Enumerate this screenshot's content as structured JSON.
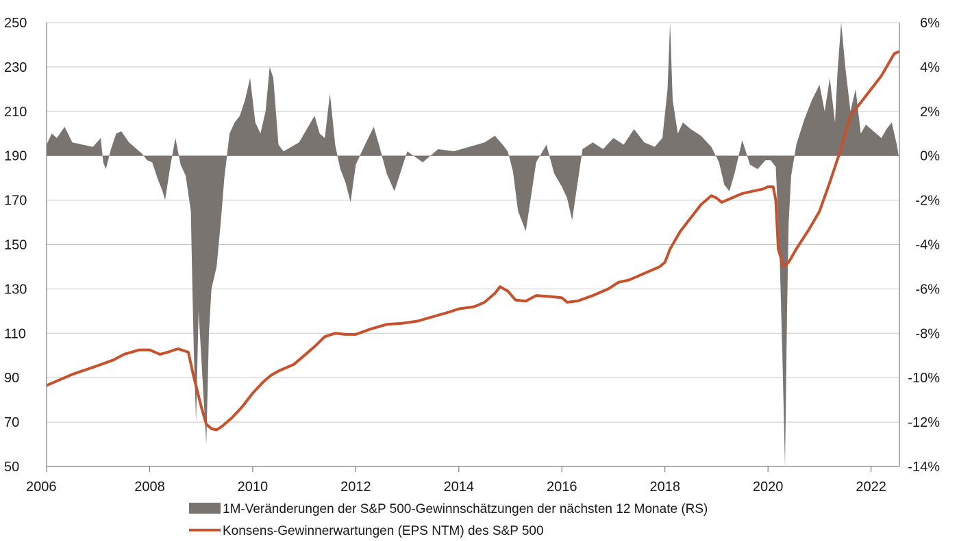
{
  "chart_data": {
    "type": "line",
    "title": "",
    "xlabel": "",
    "ylabel_left": "",
    "ylabel_right": "",
    "x_range": [
      2006,
      2022.55
    ],
    "x_ticks": [
      2006,
      2008,
      2010,
      2012,
      2014,
      2016,
      2018,
      2020,
      2022
    ],
    "x_tick_labels": [
      "2006",
      "2008",
      "2010",
      "2012",
      "2014",
      "2016",
      "2018",
      "2020",
      "2022"
    ],
    "y_left_range": [
      50,
      250
    ],
    "y_left_ticks": [
      50,
      70,
      90,
      110,
      130,
      150,
      170,
      190,
      210,
      230,
      250
    ],
    "y_left_tick_labels": [
      "50",
      "70",
      "90",
      "110",
      "130",
      "150",
      "170",
      "190",
      "210",
      "230",
      "250"
    ],
    "y_right_range": [
      -14,
      6
    ],
    "y_right_ticks": [
      -14,
      -12,
      -10,
      -8,
      -6,
      -4,
      -2,
      0,
      2,
      4,
      6
    ],
    "y_right_tick_labels": [
      "-14%",
      "-12%",
      "-10%",
      "-8%",
      "-6%",
      "-4%",
      "-2%",
      "0%",
      "2%",
      "4%",
      "6%"
    ],
    "grid": true,
    "legend_position": "bottom",
    "series": [
      {
        "name": "1M-Veränderungen der S&P 500-Gewinnschätzungen der nächsten 12 Monate (RS)",
        "kind": "area",
        "axis": "right",
        "color": "#7a7471",
        "x": [
          2006.0,
          2006.1,
          2006.2,
          2006.35,
          2006.5,
          2006.7,
          2006.9,
          2007.05,
          2007.1,
          2007.15,
          2007.25,
          2007.35,
          2007.45,
          2007.6,
          2007.75,
          2007.85,
          2007.95,
          2008.05,
          2008.15,
          2008.25,
          2008.3,
          2008.4,
          2008.5,
          2008.6,
          2008.7,
          2008.8,
          2008.83,
          2008.86,
          2008.9,
          2008.95,
          2009.0,
          2009.05,
          2009.1,
          2009.15,
          2009.2,
          2009.3,
          2009.38,
          2009.45,
          2009.55,
          2009.65,
          2009.75,
          2009.85,
          2009.95,
          2010.05,
          2010.15,
          2010.25,
          2010.33,
          2010.4,
          2010.5,
          2010.6,
          2010.75,
          2010.9,
          2011.05,
          2011.2,
          2011.3,
          2011.4,
          2011.5,
          2011.6,
          2011.7,
          2011.8,
          2011.9,
          2012.0,
          2012.2,
          2012.35,
          2012.45,
          2012.6,
          2012.75,
          2013.0,
          2013.3,
          2013.6,
          2013.9,
          2014.2,
          2014.5,
          2014.7,
          2014.85,
          2014.95,
          2015.05,
          2015.15,
          2015.3,
          2015.5,
          2015.7,
          2015.85,
          2016.0,
          2016.1,
          2016.2,
          2016.4,
          2016.6,
          2016.8,
          2017.0,
          2017.2,
          2017.4,
          2017.6,
          2017.8,
          2017.95,
          2018.05,
          2018.1,
          2018.15,
          2018.25,
          2018.35,
          2018.5,
          2018.7,
          2018.9,
          2019.05,
          2019.15,
          2019.25,
          2019.35,
          2019.5,
          2019.65,
          2019.8,
          2019.95,
          2020.05,
          2020.15,
          2020.22,
          2020.28,
          2020.33,
          2020.37,
          2020.4,
          2020.45,
          2020.55,
          2020.7,
          2020.85,
          2021.0,
          2021.1,
          2021.2,
          2021.3,
          2021.35,
          2021.42,
          2021.5,
          2021.6,
          2021.7,
          2021.8,
          2021.9,
          2022.0,
          2022.1,
          2022.2,
          2022.3,
          2022.4,
          2022.5,
          2022.55
        ],
        "values": [
          0.5,
          1.0,
          0.8,
          1.3,
          0.6,
          0.5,
          0.4,
          0.8,
          -0.3,
          -0.6,
          0.3,
          1.0,
          1.1,
          0.6,
          0.3,
          0.1,
          -0.2,
          -0.3,
          -1.0,
          -1.6,
          -2.0,
          -0.5,
          0.8,
          -0.4,
          -0.9,
          -2.5,
          -6.0,
          -9.0,
          -12.0,
          -7.0,
          -9.0,
          -11.0,
          -13.0,
          -8.0,
          -6.0,
          -5.0,
          -3.0,
          -1.0,
          1.0,
          1.5,
          1.8,
          2.5,
          3.5,
          1.5,
          1.0,
          2.0,
          4.0,
          3.5,
          0.5,
          0.2,
          0.4,
          0.6,
          1.2,
          1.8,
          1.0,
          0.8,
          2.8,
          0.5,
          -0.6,
          -1.2,
          -2.1,
          -0.4,
          0.6,
          1.3,
          0.5,
          -0.8,
          -1.6,
          0.2,
          -0.3,
          0.3,
          0.2,
          0.4,
          0.6,
          0.9,
          0.5,
          0.2,
          -0.7,
          -2.5,
          -3.4,
          -0.3,
          0.5,
          -0.8,
          -1.4,
          -1.9,
          -2.9,
          0.3,
          0.6,
          0.3,
          0.8,
          0.5,
          1.2,
          0.6,
          0.4,
          0.8,
          3.0,
          6.0,
          2.5,
          1.0,
          1.5,
          1.2,
          0.9,
          0.4,
          -0.3,
          -1.3,
          -1.6,
          -0.8,
          0.7,
          -0.4,
          -0.6,
          -0.2,
          -0.2,
          -0.5,
          -4.0,
          -9.0,
          -14.0,
          -7.0,
          -3.0,
          -0.9,
          0.5,
          1.6,
          2.5,
          3.2,
          2.0,
          3.5,
          1.5,
          3.8,
          6.0,
          4.0,
          2.0,
          3.0,
          1.0,
          1.4,
          1.2,
          1.0,
          0.8,
          1.2,
          1.5,
          0.5,
          -0.2
        ]
      },
      {
        "name": "Konsens-Gewinnerwartungen (EPS NTM) des S&P 500",
        "kind": "line",
        "axis": "left",
        "color": "#c8502a",
        "x": [
          2006.0,
          2006.5,
          2007.0,
          2007.3,
          2007.5,
          2007.8,
          2008.0,
          2008.2,
          2008.35,
          2008.55,
          2008.75,
          2008.85,
          2009.0,
          2009.1,
          2009.2,
          2009.3,
          2009.4,
          2009.6,
          2009.8,
          2010.0,
          2010.2,
          2010.35,
          2010.5,
          2010.8,
          2011.0,
          2011.2,
          2011.4,
          2011.6,
          2011.8,
          2012.0,
          2012.3,
          2012.6,
          2012.9,
          2013.2,
          2013.5,
          2013.8,
          2014.0,
          2014.3,
          2014.5,
          2014.7,
          2014.8,
          2014.95,
          2015.1,
          2015.3,
          2015.5,
          2015.8,
          2016.0,
          2016.1,
          2016.3,
          2016.6,
          2016.9,
          2017.1,
          2017.3,
          2017.6,
          2017.9,
          2018.0,
          2018.1,
          2018.3,
          2018.5,
          2018.7,
          2018.9,
          2019.0,
          2019.1,
          2019.3,
          2019.5,
          2019.7,
          2019.9,
          2020.0,
          2020.1,
          2020.15,
          2020.2,
          2020.3,
          2020.4,
          2020.55,
          2020.8,
          2021.0,
          2021.2,
          2021.4,
          2021.6,
          2021.8,
          2022.0,
          2022.2,
          2022.35,
          2022.45,
          2022.55
        ],
        "values": [
          86.5,
          91.5,
          95.5,
          98,
          100.5,
          102.5,
          102.5,
          100.5,
          101.5,
          103,
          101.5,
          91,
          77,
          69,
          67,
          66.5,
          68,
          72,
          77,
          83,
          88,
          91,
          93,
          96,
          100,
          104,
          108.5,
          110,
          109.5,
          109.5,
          112,
          114,
          114.5,
          115.5,
          117.5,
          119.5,
          121,
          122,
          124,
          128,
          131,
          129,
          125,
          124.5,
          127,
          126.5,
          126,
          124,
          124.5,
          127,
          130,
          133,
          134,
          137,
          140,
          142,
          148,
          156,
          162,
          168,
          172,
          171,
          169,
          171,
          173,
          174,
          175,
          176,
          176,
          170,
          148,
          140,
          142,
          148,
          157,
          165,
          178,
          192,
          208,
          214,
          220,
          226,
          232,
          236,
          237
        ]
      }
    ]
  }
}
